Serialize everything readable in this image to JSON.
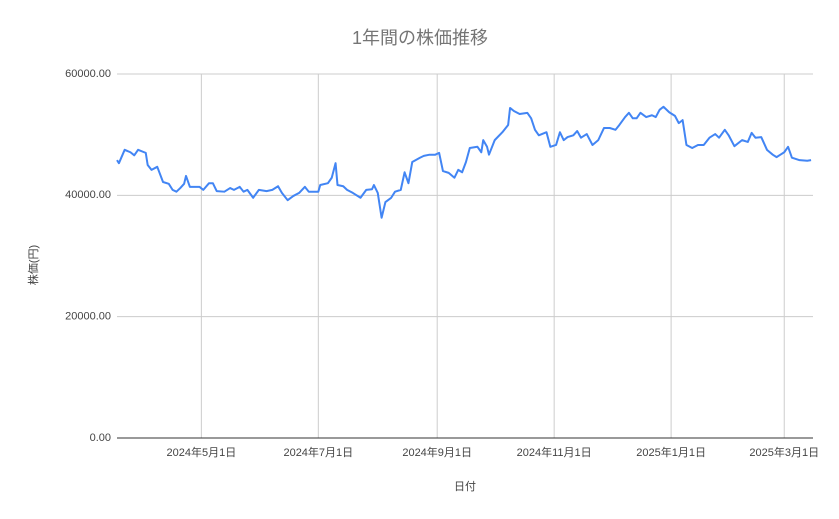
{
  "chart_data": {
    "type": "line",
    "title": "1年間の株価推移",
    "x_label": "日付",
    "y_label": "株価(円)",
    "color": "#4285f4",
    "grid": true,
    "xlim": [
      "2024-03-18",
      "2025-03-16"
    ],
    "xticks": [
      {
        "value": "2024-05-01",
        "label": "2024年5月1日"
      },
      {
        "value": "2024-07-01",
        "label": "2024年7月1日"
      },
      {
        "value": "2024-09-01",
        "label": "2024年9月1日"
      },
      {
        "value": "2024-11-01",
        "label": "2024年11月1日"
      },
      {
        "value": "2025-01-01",
        "label": "2025年1月1日"
      },
      {
        "value": "2025-03-01",
        "label": "2025年3月1日"
      }
    ],
    "ylim": [
      0,
      60000
    ],
    "yticks": [
      {
        "value": 0,
        "label": "0.00"
      },
      {
        "value": 20000,
        "label": "20000.00"
      },
      {
        "value": 40000,
        "label": "40000.00"
      },
      {
        "value": 60000,
        "label": "60000.00"
      }
    ],
    "x": [
      "2024-03-18",
      "2024-03-19",
      "2024-03-22",
      "2024-03-25",
      "2024-03-27",
      "2024-03-29",
      "2024-04-02",
      "2024-04-03",
      "2024-04-05",
      "2024-04-08",
      "2024-04-11",
      "2024-04-14",
      "2024-04-16",
      "2024-04-18",
      "2024-04-20",
      "2024-04-22",
      "2024-04-23",
      "2024-04-25",
      "2024-04-27",
      "2024-04-30",
      "2024-05-02",
      "2024-05-05",
      "2024-05-07",
      "2024-05-09",
      "2024-05-13",
      "2024-05-16",
      "2024-05-18",
      "2024-05-21",
      "2024-05-23",
      "2024-05-25",
      "2024-05-28",
      "2024-05-31",
      "2024-06-04",
      "2024-06-07",
      "2024-06-10",
      "2024-06-12",
      "2024-06-15",
      "2024-06-18",
      "2024-06-21",
      "2024-06-24",
      "2024-06-26",
      "2024-07-01",
      "2024-07-02",
      "2024-07-06",
      "2024-07-08",
      "2024-07-10",
      "2024-07-11",
      "2024-07-14",
      "2024-07-16",
      "2024-07-19",
      "2024-07-23",
      "2024-07-26",
      "2024-07-29",
      "2024-07-30",
      "2024-08-01",
      "2024-08-03",
      "2024-08-05",
      "2024-08-08",
      "2024-08-10",
      "2024-08-13",
      "2024-08-15",
      "2024-08-17",
      "2024-08-19",
      "2024-08-23",
      "2024-08-25",
      "2024-08-28",
      "2024-08-31",
      "2024-09-02",
      "2024-09-04",
      "2024-09-07",
      "2024-09-10",
      "2024-09-12",
      "2024-09-14",
      "2024-09-16",
      "2024-09-18",
      "2024-09-22",
      "2024-09-24",
      "2024-09-25",
      "2024-09-27",
      "2024-09-28",
      "2024-10-01",
      "2024-10-05",
      "2024-10-08",
      "2024-10-09",
      "2024-10-11",
      "2024-10-14",
      "2024-10-18",
      "2024-10-20",
      "2024-10-22",
      "2024-10-24",
      "2024-10-28",
      "2024-10-30",
      "2024-11-02",
      "2024-11-04",
      "2024-11-06",
      "2024-11-08",
      "2024-11-11",
      "2024-11-13",
      "2024-11-15",
      "2024-11-18",
      "2024-11-21",
      "2024-11-24",
      "2024-11-27",
      "2024-11-30",
      "2024-12-03",
      "2024-12-05",
      "2024-12-08",
      "2024-12-10",
      "2024-12-12",
      "2024-12-14",
      "2024-12-16",
      "2024-12-19",
      "2024-12-22",
      "2024-12-24",
      "2024-12-26",
      "2024-12-28",
      "2024-12-31",
      "2025-01-03",
      "2025-01-05",
      "2025-01-07",
      "2025-01-09",
      "2025-01-12",
      "2025-01-15",
      "2025-01-18",
      "2025-01-21",
      "2025-01-24",
      "2025-01-26",
      "2025-01-29",
      "2025-01-31",
      "2025-02-03",
      "2025-02-07",
      "2025-02-10",
      "2025-02-12",
      "2025-02-14",
      "2025-02-17",
      "2025-02-20",
      "2025-02-23",
      "2025-02-25",
      "2025-02-27",
      "2025-03-01",
      "2025-03-03",
      "2025-03-05",
      "2025-03-09",
      "2025-03-13",
      "2025-03-15"
    ],
    "values": [
      45800,
      45300,
      47500,
      47100,
      46600,
      47500,
      47000,
      45000,
      44200,
      44700,
      42200,
      41900,
      40900,
      40600,
      41200,
      41900,
      43200,
      41400,
      41400,
      41400,
      40900,
      42000,
      42000,
      40700,
      40600,
      41200,
      40900,
      41400,
      40600,
      40900,
      39600,
      40900,
      40700,
      40900,
      41500,
      40400,
      39200,
      39900,
      40400,
      41400,
      40600,
      40600,
      41700,
      42000,
      42900,
      45300,
      41700,
      41500,
      40900,
      40400,
      39600,
      40900,
      41000,
      41700,
      40400,
      36300,
      38900,
      39600,
      40600,
      40900,
      43800,
      42000,
      45500,
      46200,
      46500,
      46700,
      46700,
      47000,
      44000,
      43700,
      42900,
      44200,
      43800,
      45500,
      47800,
      48000,
      47100,
      49100,
      48000,
      46700,
      49100,
      50400,
      51600,
      54400,
      53900,
      53400,
      53600,
      52700,
      50800,
      49900,
      50400,
      48000,
      48300,
      50400,
      49100,
      49600,
      49900,
      50600,
      49500,
      50100,
      48300,
      49100,
      51100,
      51100,
      50800,
      51600,
      52900,
      53600,
      52700,
      52700,
      53600,
      52900,
      53200,
      52900,
      54100,
      54600,
      53700,
      53100,
      51900,
      52400,
      48300,
      47800,
      48300,
      48300,
      49500,
      50100,
      49500,
      50800,
      49900,
      48100,
      49100,
      48800,
      50300,
      49500,
      49600,
      47500,
      46700,
      46300,
      46700,
      47100,
      48000,
      46200,
      45800,
      45700,
      45800
    ]
  }
}
